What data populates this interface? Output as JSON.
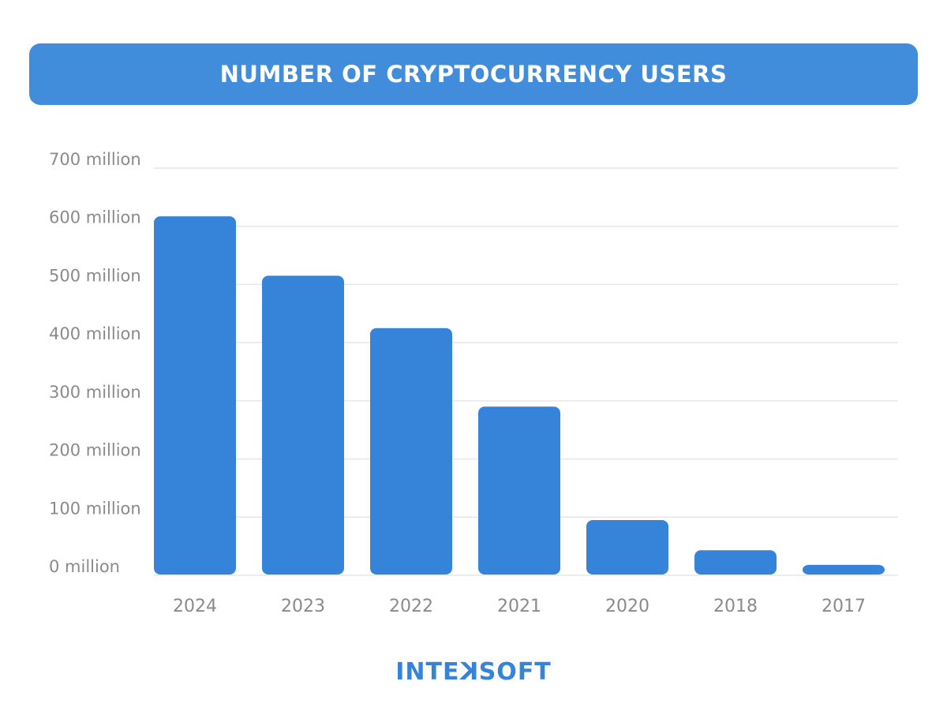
{
  "chart_data": {
    "type": "bar",
    "title": "NUMBER OF CRYPTOCURRENCY USERS",
    "categories": [
      "2024",
      "2023",
      "2022",
      "2021",
      "2020",
      "2018",
      "2017"
    ],
    "values": [
      617,
      515,
      425,
      290,
      95,
      43,
      18
    ],
    "unit": "million",
    "ylim": [
      0,
      700
    ],
    "yticks": [
      "0 million",
      "100 million",
      "200 million",
      "300 million",
      "400 million",
      "500 million",
      "600 million",
      "700 million"
    ],
    "xlabel": "",
    "ylabel": "",
    "grid": true,
    "bar_color": "#3584d9"
  },
  "brand": {
    "logo": "INTEXSOFT"
  }
}
